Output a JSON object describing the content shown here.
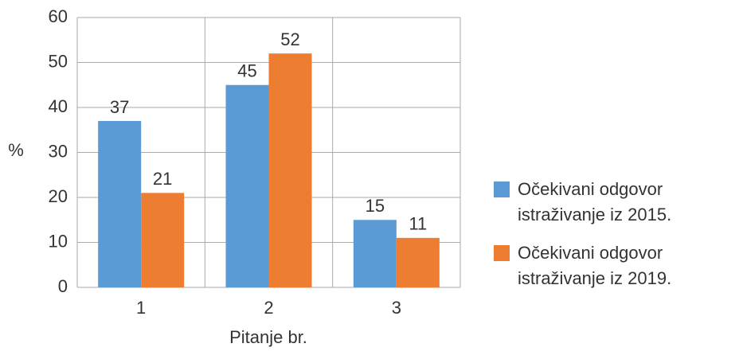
{
  "chart_data": {
    "type": "bar",
    "x_label": "Pitanje br.",
    "y_label": "%",
    "categories": [
      "1",
      "2",
      "3"
    ],
    "series": [
      {
        "name": "Očekivani odgovor istraživanje iz 2015.",
        "color": "#5b9bd5",
        "values": [
          37,
          45,
          15
        ]
      },
      {
        "name": "Očekivani odgovor istraživanje iz 2019.",
        "color": "#ed7d31",
        "values": [
          21,
          52,
          11
        ]
      }
    ],
    "ylim": [
      0,
      60
    ],
    "yticks": [
      0,
      10,
      20,
      30,
      40,
      50,
      60
    ],
    "grid": true,
    "legend": "right"
  }
}
